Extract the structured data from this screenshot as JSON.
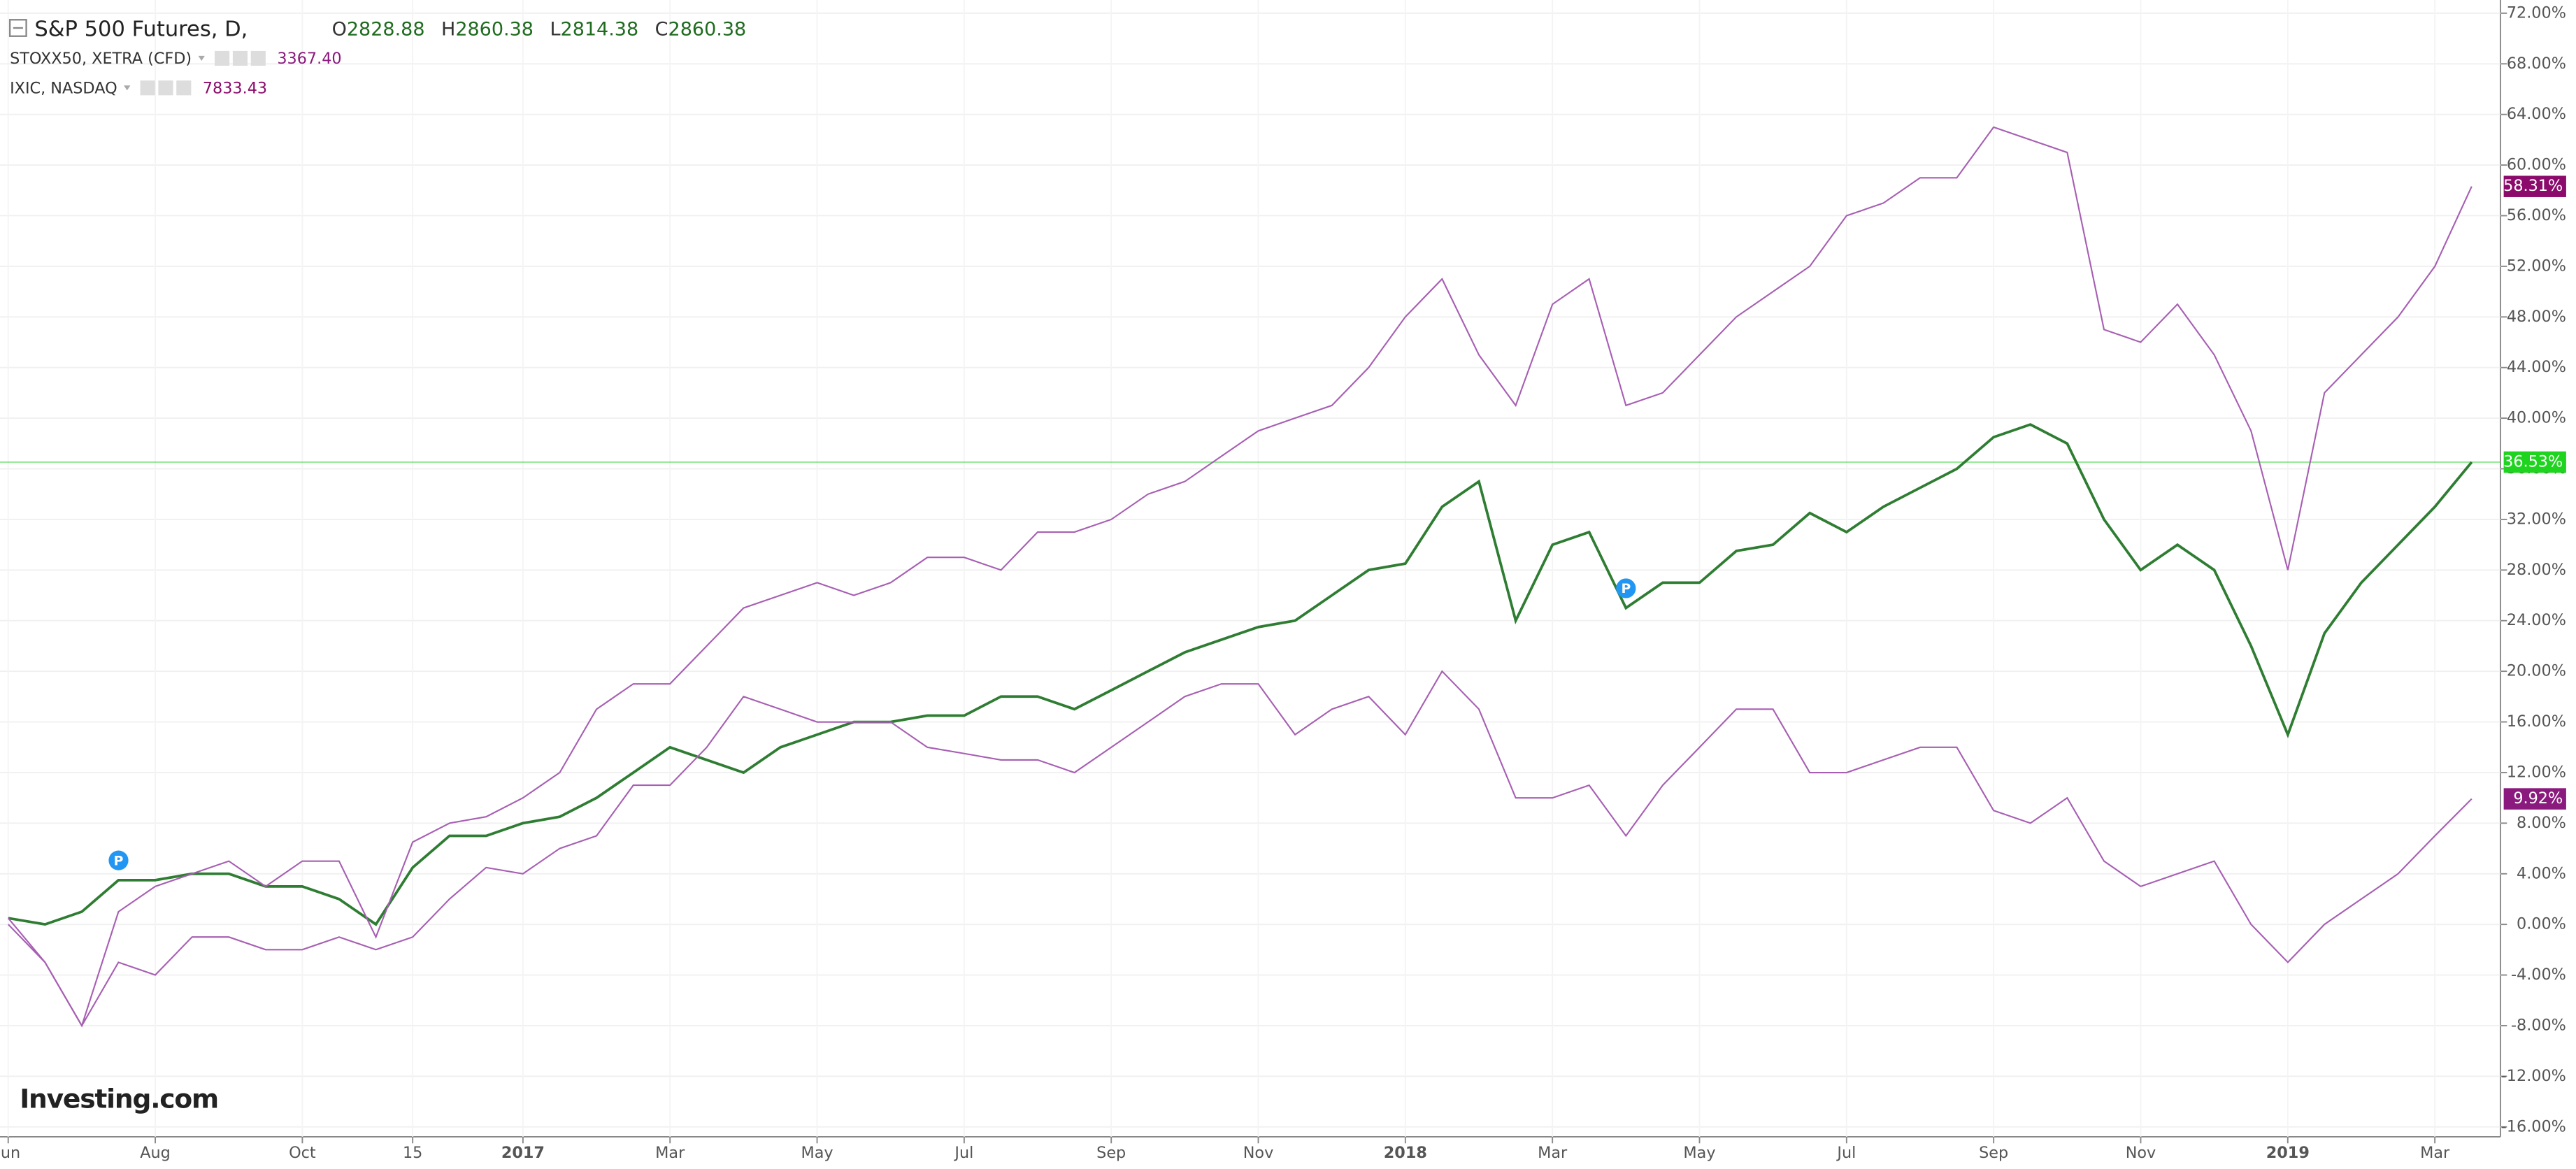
{
  "chart_data": {
    "type": "line",
    "header": {
      "ohlc": [
        {
          "key": "O",
          "value": 2828.88
        },
        {
          "key": "H",
          "value": 2860.38
        },
        {
          "key": "L",
          "value": 2814.38
        },
        {
          "key": "C",
          "value": 2860.38
        }
      ]
    },
    "watermark": "Investing.com",
    "categories": [
      "Jun",
      null,
      null,
      null,
      "Aug",
      null,
      null,
      null,
      "Oct",
      null,
      null,
      "15",
      null,
      null,
      "2017",
      null,
      null,
      null,
      "Mar",
      null,
      null,
      null,
      "May",
      null,
      null,
      null,
      "Jul",
      null,
      null,
      null,
      "Sep",
      null,
      null,
      null,
      "Nov",
      null,
      null,
      null,
      "2018",
      null,
      null,
      null,
      "Mar",
      null,
      null,
      null,
      "May",
      null,
      null,
      null,
      "Jul",
      null,
      null,
      null,
      "Sep",
      null,
      null,
      null,
      "Nov",
      null,
      null,
      null,
      "2019",
      null,
      null,
      null,
      "Mar",
      null
    ],
    "ylim": [
      -16.78,
      73.04
    ],
    "yticks": [
      {
        "value": 72,
        "label": "72.00%"
      },
      {
        "value": 68,
        "label": "68.00%"
      },
      {
        "value": 64,
        "label": "64.00%"
      },
      {
        "value": 60,
        "label": "60.00%"
      },
      {
        "value": 56,
        "label": "56.00%"
      },
      {
        "value": 52,
        "label": "52.00%"
      },
      {
        "value": 48,
        "label": "48.00%"
      },
      {
        "value": 44,
        "label": "44.00%"
      },
      {
        "value": 40,
        "label": "40.00%"
      },
      {
        "value": 36,
        "label": "36.00%"
      },
      {
        "value": 32,
        "label": "32.00%"
      },
      {
        "value": 28,
        "label": "28.00%"
      },
      {
        "value": 24,
        "label": "24.00%"
      },
      {
        "value": 20,
        "label": "20.00%"
      },
      {
        "value": 16,
        "label": "16.00%"
      },
      {
        "value": 12,
        "label": "12.00%"
      },
      {
        "value": 8,
        "label": "8.00%"
      },
      {
        "value": 4,
        "label": "4.00%"
      },
      {
        "value": 0,
        "label": "0.00%"
      },
      {
        "value": -4,
        "label": "-4.00%"
      },
      {
        "value": -8,
        "label": "-8.00%"
      },
      {
        "value": -12,
        "label": "-12.00%"
      },
      {
        "value": -16,
        "label": "-16.00%"
      }
    ],
    "grid": true,
    "markers": [
      {
        "x": 3,
        "label": "P"
      },
      {
        "x": 44,
        "label": "P"
      }
    ],
    "series": [
      {
        "name": "S&P 500 Futures, D,",
        "color": "#2e7d32",
        "label_color": "#1ed41e",
        "values": [
          0.5,
          0,
          1,
          3.5,
          3.5,
          4,
          4,
          3,
          3,
          2,
          0,
          4.5,
          7,
          7,
          8,
          8.5,
          10,
          12,
          14,
          13,
          12,
          14,
          15,
          16,
          16,
          16.5,
          16.5,
          18,
          18,
          17,
          18.5,
          20,
          21.5,
          22.5,
          23.5,
          24,
          26,
          28,
          28.5,
          33,
          35,
          24,
          30,
          31,
          25,
          27,
          27,
          29.5,
          30,
          32.5,
          31,
          33,
          34.5,
          36,
          38.5,
          39.5,
          38,
          32,
          28,
          30,
          28,
          22,
          15,
          23,
          27,
          30,
          33,
          36.53
        ],
        "value_labels": [
          null,
          null,
          null,
          null,
          null,
          null,
          null,
          null,
          null,
          null,
          null,
          null,
          null,
          null,
          null,
          null,
          null,
          null,
          null,
          null,
          null,
          null,
          null,
          null,
          null,
          null,
          null,
          null,
          null,
          null,
          null,
          null,
          null,
          null,
          null,
          null,
          null,
          null,
          null,
          null,
          null,
          null,
          null,
          null,
          null,
          null,
          null,
          null,
          null,
          null,
          null,
          null,
          null,
          null,
          null,
          null,
          null,
          null,
          null,
          null,
          null,
          null,
          null,
          null,
          null,
          null,
          null,
          "36.53%"
        ]
      },
      {
        "name": "STOXX50, XETRA (CFD)",
        "last_price": {
          "value": 3367.4,
          "label": "3367.40"
        },
        "color": "#a75fb3",
        "label_color": "#8b1a7e",
        "values": [
          0.5,
          -3,
          -8,
          -3,
          -4,
          -1,
          -1,
          -2,
          -2,
          -1,
          -2,
          -1,
          2,
          4.5,
          4,
          6,
          7,
          11,
          11,
          14,
          18,
          17,
          16,
          16,
          16,
          14,
          13.5,
          13,
          13,
          12,
          14,
          16,
          18,
          19,
          19,
          15,
          17,
          18,
          15,
          20,
          17,
          10,
          10,
          11,
          7,
          11,
          14,
          17,
          17,
          12,
          12,
          13,
          14,
          14,
          9,
          8,
          10,
          5,
          3,
          4,
          5,
          0,
          -3,
          0,
          2,
          4,
          7,
          9.92
        ],
        "value_labels": [
          null,
          null,
          null,
          null,
          null,
          null,
          null,
          null,
          null,
          null,
          null,
          null,
          null,
          null,
          null,
          null,
          null,
          null,
          null,
          null,
          null,
          null,
          null,
          null,
          null,
          null,
          null,
          null,
          null,
          null,
          null,
          null,
          null,
          null,
          null,
          null,
          null,
          null,
          null,
          null,
          null,
          null,
          null,
          null,
          null,
          null,
          null,
          null,
          null,
          null,
          null,
          null,
          null,
          null,
          null,
          null,
          null,
          null,
          null,
          null,
          null,
          null,
          null,
          null,
          null,
          null,
          null,
          "9.92%"
        ]
      },
      {
        "name": "IXIC, NASDAQ",
        "last_price": {
          "value": 7833.43,
          "label": "7833.43"
        },
        "color": "#a75fb3",
        "label_color": "#8b0a6b",
        "values": [
          0,
          -3,
          -8,
          1,
          3,
          4,
          5,
          3,
          5,
          5,
          -1,
          6.5,
          8,
          8.5,
          10,
          12,
          17,
          19,
          19,
          22,
          25,
          26,
          27,
          26,
          27,
          29,
          29,
          28,
          31,
          31,
          32,
          34,
          35,
          37,
          39,
          40,
          41,
          44,
          48,
          51,
          45,
          41,
          49,
          51,
          41,
          42,
          45,
          48,
          50,
          52,
          56,
          57,
          59,
          59,
          63,
          62,
          61,
          47,
          46,
          49,
          45,
          39,
          28,
          42,
          45,
          48,
          52,
          58.31
        ],
        "value_labels": [
          null,
          null,
          null,
          null,
          null,
          null,
          null,
          null,
          null,
          null,
          null,
          null,
          null,
          null,
          null,
          null,
          null,
          null,
          null,
          null,
          null,
          null,
          null,
          null,
          null,
          null,
          null,
          null,
          null,
          null,
          null,
          null,
          null,
          null,
          null,
          null,
          null,
          null,
          null,
          null,
          null,
          null,
          null,
          null,
          null,
          null,
          null,
          null,
          null,
          null,
          null,
          null,
          null,
          null,
          null,
          null,
          null,
          null,
          null,
          null,
          null,
          null,
          null,
          null,
          null,
          null,
          null,
          "58.31%"
        ]
      }
    ]
  }
}
